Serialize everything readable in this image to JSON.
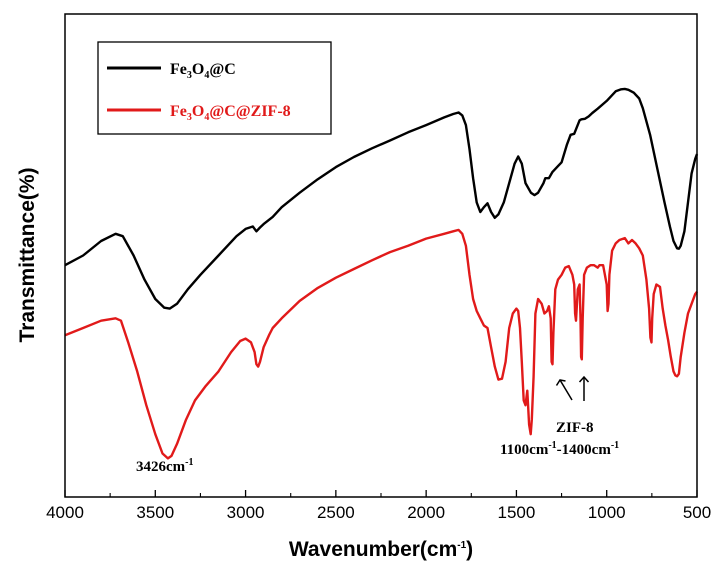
{
  "chart_data": {
    "type": "line",
    "title": "",
    "xlabel": {
      "base": "Wavenumber(cm",
      "sup": "-1",
      "tail": ")"
    },
    "ylabel": "Transmittance(%)",
    "xlim": [
      4000,
      500
    ],
    "x_reversed": true,
    "ylim": [
      0,
      100
    ],
    "y_ticks_shown": false,
    "grid": false,
    "x_ticks": [
      4000,
      3500,
      3000,
      2500,
      2000,
      1500,
      1000,
      500
    ],
    "x_tick_labels": [
      "4000",
      "3500",
      "3000",
      "2500",
      "2000",
      "1500",
      "1000",
      "500"
    ],
    "legend": {
      "position": "top-left",
      "entries": [
        {
          "parts": [
            "Fe",
            "3",
            "O",
            "4",
            "@C"
          ],
          "color": "#000000"
        },
        {
          "parts": [
            "Fe",
            "3",
            "O",
            "4",
            "@C@ZIF-8"
          ],
          "color": "#e11a1a"
        }
      ]
    },
    "series": [
      {
        "color": "#000000",
        "points": [
          [
            4000,
            48
          ],
          [
            3900,
            50
          ],
          [
            3800,
            53
          ],
          [
            3720,
            54.5
          ],
          [
            3680,
            54
          ],
          [
            3620,
            50
          ],
          [
            3560,
            45
          ],
          [
            3500,
            41
          ],
          [
            3450,
            39.2
          ],
          [
            3420,
            39
          ],
          [
            3380,
            40
          ],
          [
            3320,
            43
          ],
          [
            3250,
            46
          ],
          [
            3150,
            50
          ],
          [
            3050,
            54
          ],
          [
            3000,
            55.5
          ],
          [
            2960,
            56
          ],
          [
            2940,
            55
          ],
          [
            2920,
            55.8
          ],
          [
            2900,
            56.5
          ],
          [
            2850,
            58
          ],
          [
            2800,
            60
          ],
          [
            2700,
            63
          ],
          [
            2600,
            65.8
          ],
          [
            2500,
            68.3
          ],
          [
            2400,
            70.4
          ],
          [
            2300,
            72.2
          ],
          [
            2200,
            73.8
          ],
          [
            2100,
            75.5
          ],
          [
            2000,
            77
          ],
          [
            1900,
            78.6
          ],
          [
            1850,
            79.3
          ],
          [
            1820,
            79.6
          ],
          [
            1800,
            79
          ],
          [
            1780,
            77
          ],
          [
            1760,
            72
          ],
          [
            1740,
            66
          ],
          [
            1720,
            61
          ],
          [
            1700,
            59
          ],
          [
            1680,
            60
          ],
          [
            1660,
            60.8
          ],
          [
            1640,
            59
          ],
          [
            1620,
            57.8
          ],
          [
            1600,
            58.5
          ],
          [
            1570,
            61
          ],
          [
            1540,
            65
          ],
          [
            1510,
            69
          ],
          [
            1490,
            70.5
          ],
          [
            1470,
            69
          ],
          [
            1450,
            65
          ],
          [
            1420,
            63
          ],
          [
            1400,
            62.5
          ],
          [
            1380,
            63
          ],
          [
            1350,
            65
          ],
          [
            1340,
            66
          ],
          [
            1320,
            66
          ],
          [
            1300,
            67.3
          ],
          [
            1270,
            68.5
          ],
          [
            1250,
            69.3
          ],
          [
            1220,
            73
          ],
          [
            1200,
            75
          ],
          [
            1180,
            75.2
          ],
          [
            1150,
            78
          ],
          [
            1140,
            78.2
          ],
          [
            1120,
            78.3
          ],
          [
            1100,
            78.8
          ],
          [
            1080,
            79.5
          ],
          [
            1050,
            80.4
          ],
          [
            1000,
            82
          ],
          [
            950,
            84
          ],
          [
            920,
            84.4
          ],
          [
            900,
            84.5
          ],
          [
            880,
            84.3
          ],
          [
            850,
            83.7
          ],
          [
            820,
            82.5
          ],
          [
            800,
            80.5
          ],
          [
            760,
            75
          ],
          [
            720,
            68
          ],
          [
            680,
            61
          ],
          [
            650,
            56
          ],
          [
            630,
            53
          ],
          [
            610,
            51.5
          ],
          [
            600,
            51.4
          ],
          [
            590,
            52
          ],
          [
            570,
            55
          ],
          [
            550,
            61
          ],
          [
            530,
            67
          ],
          [
            510,
            70
          ],
          [
            500,
            71
          ]
        ]
      },
      {
        "color": "#e11a1a",
        "points": [
          [
            4000,
            33.5
          ],
          [
            3900,
            35
          ],
          [
            3800,
            36.5
          ],
          [
            3720,
            37
          ],
          [
            3690,
            36.5
          ],
          [
            3650,
            32
          ],
          [
            3600,
            26
          ],
          [
            3550,
            19
          ],
          [
            3500,
            13
          ],
          [
            3460,
            9
          ],
          [
            3430,
            8
          ],
          [
            3410,
            8.5
          ],
          [
            3380,
            11
          ],
          [
            3330,
            16
          ],
          [
            3280,
            20
          ],
          [
            3220,
            23
          ],
          [
            3150,
            26
          ],
          [
            3080,
            30
          ],
          [
            3030,
            32.3
          ],
          [
            3000,
            32.8
          ],
          [
            2970,
            32
          ],
          [
            2950,
            30
          ],
          [
            2940,
            27.5
          ],
          [
            2930,
            27
          ],
          [
            2920,
            28
          ],
          [
            2900,
            31
          ],
          [
            2870,
            33.5
          ],
          [
            2850,
            35
          ],
          [
            2800,
            37
          ],
          [
            2700,
            40.6
          ],
          [
            2600,
            43.3
          ],
          [
            2500,
            45.4
          ],
          [
            2400,
            47.2
          ],
          [
            2300,
            49
          ],
          [
            2200,
            50.7
          ],
          [
            2100,
            52
          ],
          [
            2000,
            53.5
          ],
          [
            1900,
            54.5
          ],
          [
            1850,
            55
          ],
          [
            1820,
            55.3
          ],
          [
            1800,
            54.5
          ],
          [
            1780,
            52
          ],
          [
            1760,
            46
          ],
          [
            1740,
            41
          ],
          [
            1720,
            38.5
          ],
          [
            1700,
            37
          ],
          [
            1680,
            35.5
          ],
          [
            1660,
            35
          ],
          [
            1640,
            31
          ],
          [
            1620,
            27
          ],
          [
            1600,
            24.3
          ],
          [
            1580,
            24.5
          ],
          [
            1560,
            28
          ],
          [
            1540,
            35
          ],
          [
            1520,
            38
          ],
          [
            1500,
            39
          ],
          [
            1490,
            38.5
          ],
          [
            1480,
            35
          ],
          [
            1470,
            28
          ],
          [
            1460,
            20
          ],
          [
            1450,
            19
          ],
          [
            1440,
            22
          ],
          [
            1430,
            15
          ],
          [
            1421,
            13
          ],
          [
            1415,
            16
          ],
          [
            1405,
            25
          ],
          [
            1395,
            38
          ],
          [
            1380,
            41
          ],
          [
            1360,
            40
          ],
          [
            1345,
            38
          ],
          [
            1330,
            38.5
          ],
          [
            1320,
            39.5
          ],
          [
            1310,
            37
          ],
          [
            1305,
            28
          ],
          [
            1300,
            27.5
          ],
          [
            1295,
            34
          ],
          [
            1285,
            43
          ],
          [
            1270,
            45
          ],
          [
            1250,
            46
          ],
          [
            1230,
            47.5
          ],
          [
            1210,
            47.8
          ],
          [
            1190,
            46
          ],
          [
            1180,
            44
          ],
          [
            1175,
            38
          ],
          [
            1170,
            36.5
          ],
          [
            1160,
            43
          ],
          [
            1150,
            44
          ],
          [
            1145,
            37
          ],
          [
            1142,
            29
          ],
          [
            1138,
            28.5
          ],
          [
            1133,
            37
          ],
          [
            1125,
            46
          ],
          [
            1110,
            47.5
          ],
          [
            1090,
            48
          ],
          [
            1070,
            48
          ],
          [
            1050,
            47.5
          ],
          [
            1040,
            48
          ],
          [
            1020,
            48
          ],
          [
            1000,
            44
          ],
          [
            995,
            38.5
          ],
          [
            990,
            40
          ],
          [
            985,
            46
          ],
          [
            970,
            51
          ],
          [
            950,
            52.5
          ],
          [
            930,
            53.2
          ],
          [
            900,
            53.6
          ],
          [
            880,
            52.5
          ],
          [
            860,
            53.2
          ],
          [
            840,
            52.5
          ],
          [
            820,
            51.5
          ],
          [
            800,
            50
          ],
          [
            780,
            45
          ],
          [
            765,
            39
          ],
          [
            758,
            33
          ],
          [
            752,
            32
          ],
          [
            748,
            37
          ],
          [
            740,
            42
          ],
          [
            725,
            44
          ],
          [
            705,
            43.5
          ],
          [
            690,
            39
          ],
          [
            675,
            35.5
          ],
          [
            660,
            32.5
          ],
          [
            645,
            29
          ],
          [
            630,
            26
          ],
          [
            620,
            25.2
          ],
          [
            610,
            25
          ],
          [
            600,
            25.5
          ],
          [
            590,
            29
          ],
          [
            570,
            34
          ],
          [
            550,
            38
          ],
          [
            530,
            40
          ],
          [
            510,
            42
          ],
          [
            500,
            42.5
          ]
        ]
      }
    ],
    "annotations": [
      {
        "id": "peak-3426",
        "base": "3426cm",
        "sup": "-1",
        "tail": ""
      },
      {
        "id": "zif-label",
        "text": "ZIF-8"
      },
      {
        "id": "zif-range",
        "parts": [
          [
            "1100cm",
            "-1"
          ],
          [
            "-1400cm",
            "-1"
          ]
        ]
      }
    ]
  }
}
